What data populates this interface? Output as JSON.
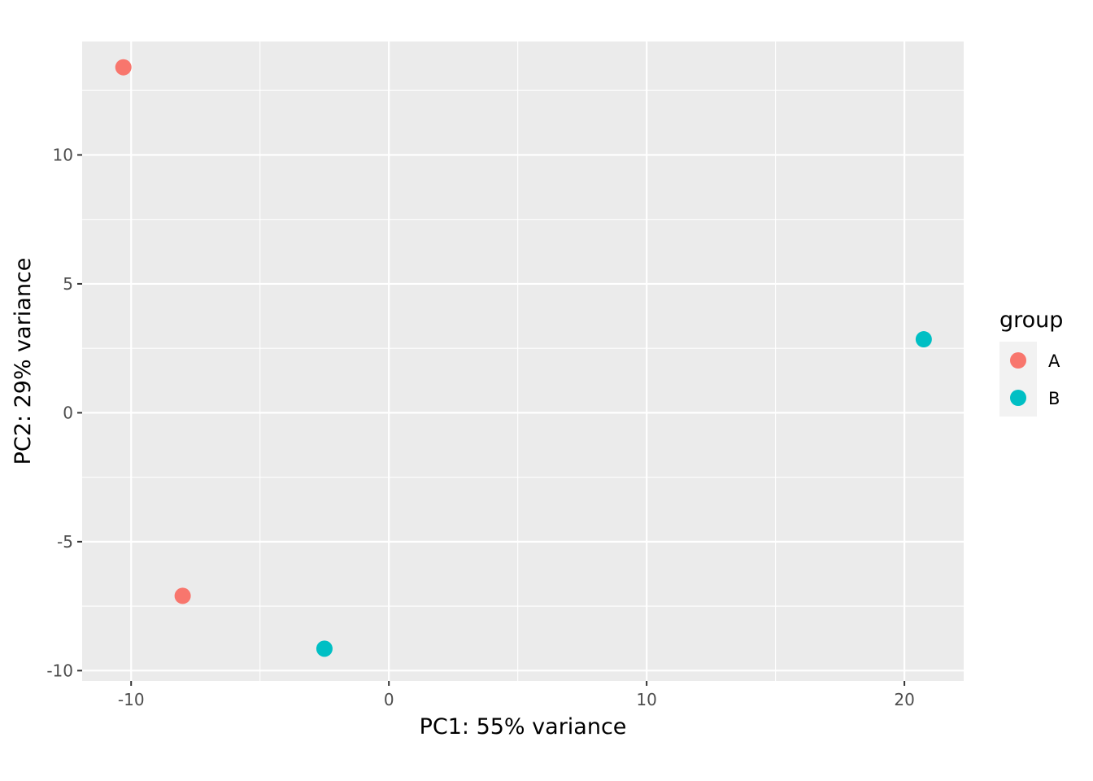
{
  "chart_data": {
    "type": "scatter",
    "xlabel": "PC1: 55% variance",
    "ylabel": "PC2: 29% variance",
    "xlim": [
      -11.9,
      22.3
    ],
    "ylim": [
      -10.4,
      14.4
    ],
    "x_ticks": [
      -10,
      0,
      10,
      20
    ],
    "x_tick_labels": [
      "-10",
      "0",
      "10",
      "20"
    ],
    "y_ticks": [
      -10,
      -5,
      0,
      5,
      10
    ],
    "y_tick_labels": [
      "-10",
      "-5",
      "0",
      "5",
      "10"
    ],
    "grid": true,
    "legend": {
      "title": "group",
      "placement": "right",
      "entries": [
        {
          "label": "A",
          "color": "#F8766D"
        },
        {
          "label": "B",
          "color": "#00BFC4"
        }
      ]
    },
    "series": [
      {
        "name": "A",
        "color": "#F8766D",
        "points": [
          {
            "x": -10.3,
            "y": 13.4
          },
          {
            "x": -8.0,
            "y": -7.1
          }
        ]
      },
      {
        "name": "B",
        "color": "#00BFC4",
        "points": [
          {
            "x": -2.5,
            "y": -9.15
          },
          {
            "x": 20.75,
            "y": 2.85
          }
        ]
      }
    ],
    "panel_background": "#EBEBEB",
    "grid_color": "#FFFFFF"
  }
}
